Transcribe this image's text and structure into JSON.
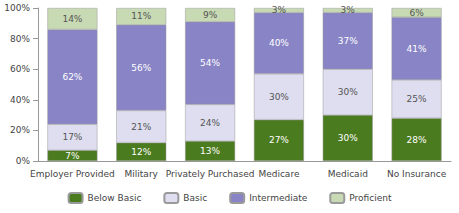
{
  "chart_data": {
    "type": "bar",
    "stacked": true,
    "data_labels": true,
    "grid": false,
    "legend": "bottom",
    "categories": [
      "Employer Provided",
      "Military",
      "Privately Purchased",
      "Medicare",
      "Medicaid",
      "No Insurance"
    ],
    "ylim": [
      0,
      100
    ],
    "yticks": [
      {
        "value": 0,
        "label": "0%"
      },
      {
        "value": 20,
        "label": "20%"
      },
      {
        "value": 40,
        "label": "40%"
      },
      {
        "value": 60,
        "label": "60%"
      },
      {
        "value": 80,
        "label": "80%"
      },
      {
        "value": 100,
        "label": "100%"
      }
    ],
    "series": [
      {
        "name": "Below Basic",
        "color": "#4b7b1f",
        "values": [
          7,
          12,
          13,
          27,
          30,
          28
        ],
        "value_labels": [
          "7%",
          "12%",
          "13%",
          "27%",
          "30%",
          "28%"
        ]
      },
      {
        "name": "Basic",
        "color": "#dedef0",
        "values": [
          17,
          21,
          24,
          30,
          30,
          25
        ],
        "value_labels": [
          "17%",
          "21%",
          "24%",
          "30%",
          "30%",
          "25%"
        ]
      },
      {
        "name": "Intermediate",
        "color": "#8884c6",
        "values": [
          62,
          56,
          54,
          40,
          37,
          41
        ],
        "value_labels": [
          "62%",
          "56%",
          "54%",
          "40%",
          "37%",
          "41%"
        ]
      },
      {
        "name": "Proficient",
        "color": "#c8dab4",
        "values": [
          14,
          11,
          9,
          3,
          3,
          6
        ],
        "value_labels": [
          "14%",
          "11%",
          "9%",
          "3%",
          "3%",
          "6%"
        ]
      }
    ]
  }
}
